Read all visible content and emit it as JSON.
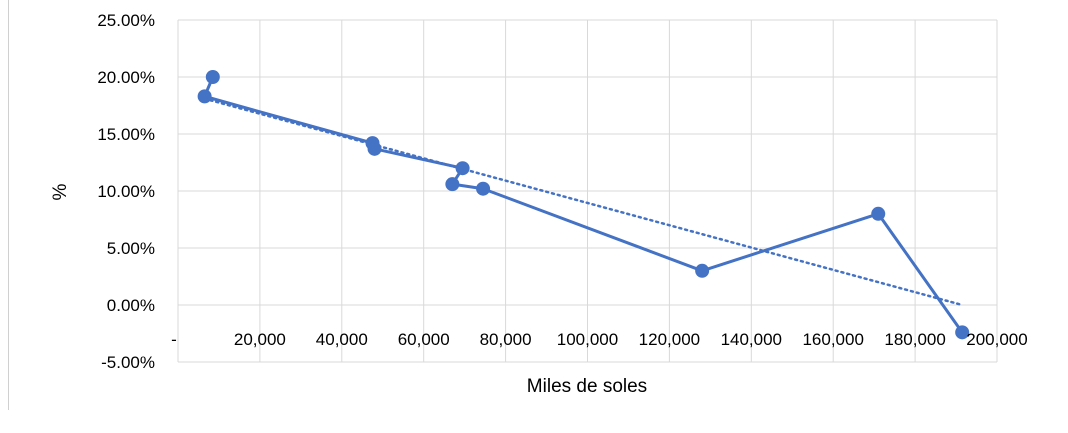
{
  "chart_data": {
    "type": "scatter",
    "title": "",
    "xlabel": "Miles de soles",
    "ylabel": "%",
    "xlim": [
      0,
      200000
    ],
    "ylim": [
      -0.05,
      0.25
    ],
    "x_ticks": [
      0,
      20000,
      40000,
      60000,
      80000,
      100000,
      120000,
      140000,
      160000,
      180000,
      200000
    ],
    "x_tick_labels": [
      "-",
      "20,000",
      "40,000",
      "60,000",
      "80,000",
      "100,000",
      "120,000",
      "140,000",
      "160,000",
      "180,000",
      "200,000"
    ],
    "y_ticks": [
      -0.05,
      0,
      0.05,
      0.1,
      0.15,
      0.2,
      0.25
    ],
    "y_tick_labels": [
      "-5.00%",
      "0.00%",
      "5.00%",
      "10.00%",
      "15.00%",
      "20.00%",
      "25.00%"
    ],
    "grid": true,
    "legend": "none",
    "series": [
      {
        "color": "#4472C4",
        "style": "line-with-markers",
        "points": [
          {
            "x": 8500,
            "y": 0.2
          },
          {
            "x": 6500,
            "y": 0.183
          },
          {
            "x": 47500,
            "y": 0.142
          },
          {
            "x": 48000,
            "y": 0.137
          },
          {
            "x": 69500,
            "y": 0.12
          },
          {
            "x": 67000,
            "y": 0.106
          },
          {
            "x": 74500,
            "y": 0.102
          },
          {
            "x": 128000,
            "y": 0.03
          },
          {
            "x": 171000,
            "y": 0.08
          },
          {
            "x": 191500,
            "y": -0.024
          }
        ]
      }
    ],
    "trendline": {
      "color": "#4472C4",
      "style": "dotted",
      "x": [
        6500,
        191500
      ],
      "y": [
        0.181,
        0.0
      ]
    }
  }
}
